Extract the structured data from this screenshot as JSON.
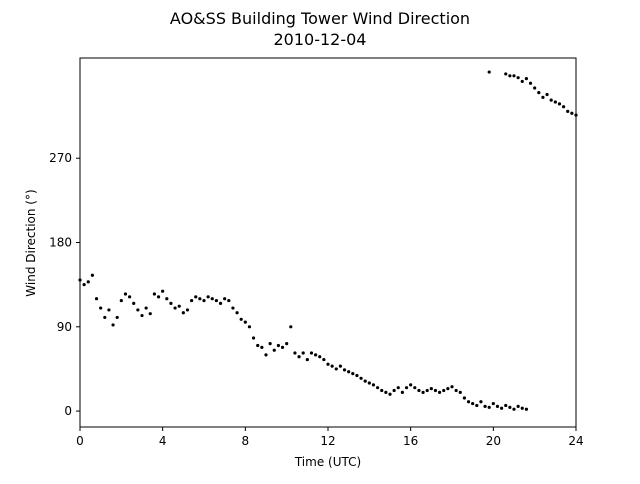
{
  "chart_data": {
    "type": "scatter",
    "title": "AO&SS Building Tower Wind Direction",
    "subtitle": "2010-12-04",
    "x_label": "Time (UTC)",
    "y_label": "Wind Direction (°)",
    "color": "#000000",
    "xlim": [
      0,
      24
    ],
    "xticks": [
      0,
      4,
      8,
      12,
      16,
      20,
      24
    ],
    "ylim": [
      -17,
      377
    ],
    "yticks": [
      0,
      90,
      180,
      270
    ],
    "x": [
      0,
      0.2,
      0.4,
      0.6,
      0.8,
      1.0,
      1.2,
      1.4,
      1.6,
      1.8,
      2.0,
      2.2,
      2.4,
      2.6,
      2.8,
      3.0,
      3.2,
      3.4,
      3.6,
      3.8,
      4.0,
      4.2,
      4.4,
      4.6,
      4.8,
      5.0,
      5.2,
      5.4,
      5.6,
      5.8,
      6.0,
      6.2,
      6.4,
      6.6,
      6.8,
      7.0,
      7.2,
      7.4,
      7.6,
      7.8,
      8.0,
      8.2,
      8.4,
      8.6,
      8.8,
      9.0,
      9.2,
      9.4,
      9.6,
      9.8,
      10.0,
      10.2,
      10.4,
      10.6,
      10.8,
      11.0,
      11.2,
      11.4,
      11.6,
      11.8,
      12.0,
      12.2,
      12.4,
      12.6,
      12.8,
      13.0,
      13.2,
      13.4,
      13.6,
      13.8,
      14.0,
      14.2,
      14.4,
      14.6,
      14.8,
      15.0,
      15.2,
      15.4,
      15.6,
      15.8,
      16.0,
      16.2,
      16.4,
      16.6,
      16.8,
      17.0,
      17.2,
      17.4,
      17.6,
      17.8,
      18.0,
      18.2,
      18.4,
      18.6,
      18.8,
      19.0,
      19.2,
      19.4,
      19.6,
      19.8,
      20.0,
      20.2,
      20.4,
      20.6,
      20.8,
      21.0,
      21.2,
      21.4,
      21.6,
      19.8,
      20.6,
      20.8,
      21.0,
      21.2,
      21.4,
      21.6,
      21.8,
      22.0,
      22.2,
      22.4,
      22.6,
      22.8,
      23.0,
      23.2,
      23.4,
      23.6,
      23.8,
      24.0
    ],
    "values": [
      140,
      135,
      138,
      145,
      120,
      110,
      100,
      108,
      92,
      100,
      118,
      125,
      122,
      115,
      108,
      102,
      110,
      104,
      125,
      122,
      128,
      120,
      115,
      110,
      112,
      105,
      108,
      118,
      122,
      120,
      118,
      122,
      120,
      118,
      115,
      120,
      118,
      110,
      105,
      98,
      95,
      90,
      78,
      70,
      68,
      60,
      72,
      65,
      70,
      68,
      72,
      90,
      62,
      58,
      62,
      55,
      62,
      60,
      58,
      55,
      50,
      48,
      45,
      48,
      44,
      42,
      40,
      38,
      35,
      32,
      30,
      28,
      25,
      22,
      20,
      18,
      22,
      25,
      20,
      25,
      28,
      25,
      22,
      20,
      22,
      24,
      22,
      20,
      22,
      24,
      26,
      22,
      20,
      14,
      10,
      8,
      6,
      10,
      5,
      4,
      8,
      5,
      3,
      6,
      4,
      2,
      5,
      3,
      2,
      362,
      360,
      358,
      358,
      356,
      352,
      355,
      350,
      345,
      340,
      335,
      338,
      332,
      330,
      328,
      325,
      320,
      318,
      316
    ]
  }
}
